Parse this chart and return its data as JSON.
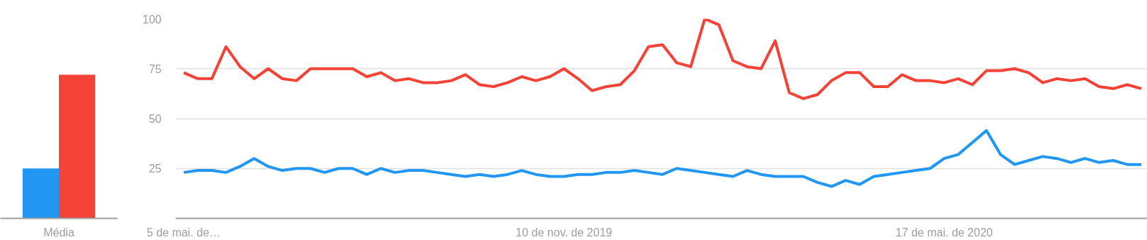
{
  "chart_data": [
    {
      "type": "bar",
      "categories": [
        "Média"
      ],
      "ylim": [
        0,
        100
      ],
      "tick_labels": "x",
      "grid": false,
      "series": [
        {
          "color": "#2196f3",
          "values": [
            25
          ]
        },
        {
          "color": "#f44336",
          "values": [
            72
          ]
        }
      ]
    },
    {
      "type": "line",
      "line_style": "solid",
      "grid": "y",
      "ylim": [
        0,
        100
      ],
      "yticks": [
        25,
        50,
        75,
        100
      ],
      "xlim": [
        "2019-05-01",
        "2020-08-26"
      ],
      "xticks": [
        {
          "value": "2019-05-05",
          "label": "5 de mai. de…"
        },
        {
          "value": "2019-11-10",
          "label": "10 de nov. de 2019"
        },
        {
          "value": "2020-05-17",
          "label": "17 de mai. de 2020"
        }
      ],
      "x": [
        "2019-05-05",
        "2019-05-12",
        "2019-05-19",
        "2019-05-26",
        "2019-06-02",
        "2019-06-09",
        "2019-06-16",
        "2019-06-23",
        "2019-06-30",
        "2019-07-07",
        "2019-07-14",
        "2019-07-21",
        "2019-07-28",
        "2019-08-04",
        "2019-08-11",
        "2019-08-18",
        "2019-08-25",
        "2019-09-01",
        "2019-09-08",
        "2019-09-15",
        "2019-09-22",
        "2019-09-29",
        "2019-10-06",
        "2019-10-13",
        "2019-10-20",
        "2019-10-27",
        "2019-11-03",
        "2019-11-10",
        "2019-11-17",
        "2019-11-24",
        "2019-12-01",
        "2019-12-08",
        "2019-12-15",
        "2019-12-22",
        "2019-12-29",
        "2020-01-05",
        "2020-01-12",
        "2020-01-19",
        "2020-01-26",
        "2020-02-02",
        "2020-02-09",
        "2020-02-16",
        "2020-02-23",
        "2020-03-01",
        "2020-03-08",
        "2020-03-15",
        "2020-03-22",
        "2020-03-29",
        "2020-04-05",
        "2020-04-12",
        "2020-04-19",
        "2020-04-26",
        "2020-05-03",
        "2020-05-10",
        "2020-05-17",
        "2020-05-24",
        "2020-05-31",
        "2020-06-07",
        "2020-06-14",
        "2020-06-21",
        "2020-06-28",
        "2020-07-05",
        "2020-07-12",
        "2020-07-19",
        "2020-07-26",
        "2020-08-02",
        "2020-08-09",
        "2020-08-16",
        "2020-08-23"
      ],
      "series": [
        {
          "color": "#2196f3",
          "values": [
            23,
            24,
            24,
            23,
            26,
            30,
            26,
            24,
            25,
            25,
            23,
            25,
            25,
            22,
            25,
            23,
            24,
            24,
            23,
            22,
            21,
            22,
            21,
            22,
            24,
            22,
            21,
            21,
            22,
            22,
            23,
            23,
            24,
            23,
            22,
            25,
            24,
            23,
            22,
            21,
            24,
            22,
            21,
            21,
            21,
            18,
            16,
            19,
            17,
            21,
            22,
            23,
            24,
            25,
            30,
            32,
            38,
            44,
            32,
            27,
            29,
            31,
            30,
            28,
            30,
            28,
            29,
            27,
            27
          ]
        },
        {
          "color": "#f44336",
          "values": [
            73,
            70,
            70,
            86,
            76,
            70,
            75,
            70,
            69,
            75,
            75,
            75,
            75,
            71,
            73,
            69,
            70,
            68,
            68,
            69,
            72,
            67,
            66,
            68,
            71,
            69,
            71,
            75,
            70,
            64,
            66,
            67,
            74,
            86,
            87,
            78,
            76,
            100,
            97,
            79,
            76,
            75,
            89,
            63,
            60,
            62,
            69,
            73,
            73,
            66,
            66,
            72,
            69,
            69,
            68,
            70,
            67,
            74,
            74,
            75,
            73,
            68,
            70,
            69,
            70,
            66,
            65,
            67,
            65
          ]
        }
      ]
    }
  ]
}
